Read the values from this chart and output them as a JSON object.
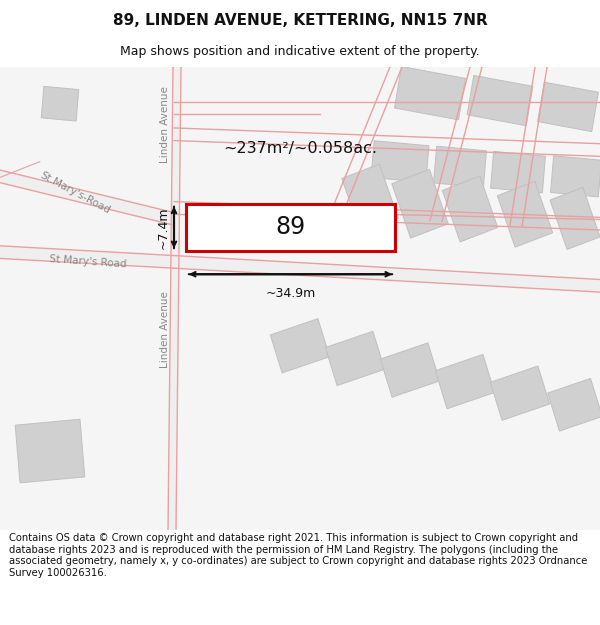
{
  "title": "89, LINDEN AVENUE, KETTERING, NN15 7NR",
  "subtitle": "Map shows position and indicative extent of the property.",
  "footer": "Contains OS data © Crown copyright and database right 2021. This information is subject to Crown copyright and database rights 2023 and is reproduced with the permission of HM Land Registry. The polygons (including the associated geometry, namely x, y co-ordinates) are subject to Crown copyright and database rights 2023 Ordnance Survey 100026316.",
  "bg_color": "#ffffff",
  "map_bg": "#f2f2f2",
  "road_line_color": "#e8a0a0",
  "building_fill": "#d0d0d0",
  "building_edge": "#c0c0c0",
  "highlight_fill": "#ffffff",
  "highlight_edge": "#cc0000",
  "street_label_color": "#888888",
  "area_label": "~237m²/~0.058ac.",
  "property_label": "89",
  "dim_width": "~34.9m",
  "dim_height": "~7.4m"
}
